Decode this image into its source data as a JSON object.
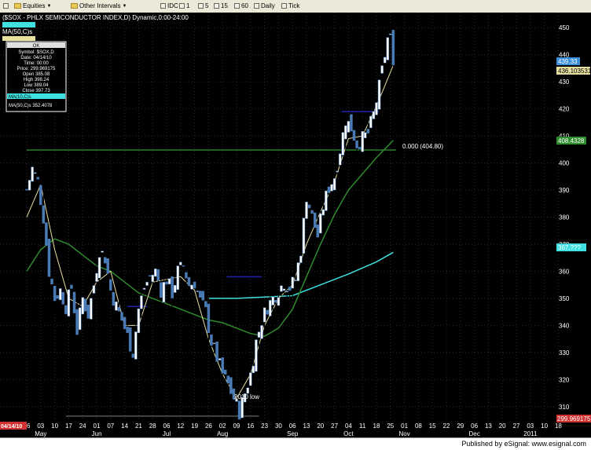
{
  "toolbar": {
    "items": [
      "Equities",
      "Other Intervals",
      "IDC",
      "1",
      "5",
      "15",
      "60",
      "Daily",
      "Tick"
    ]
  },
  "header": {
    "title": "($SOX - PHLX SEMICONDUCTOR INDEX,D) Dynamic,0:00-24:00",
    "ma_label": "MA(50,C)s"
  },
  "data_window": {
    "ok": "OK",
    "lines": [
      "Symbol: $SOX,D",
      "Date: 04/14/10",
      "Time: 00:00",
      "Price: 299.969175",
      "Open 385.08",
      "High 398.24",
      "Low 389.04",
      "Close 397.73"
    ],
    "ma_short": "MA(10,C)s",
    "ma_long": "MA(50,C)s 352.4078"
  },
  "footer": {
    "text": "Published by eSignal: www.esignal.com"
  },
  "colors": {
    "background": "#000000",
    "grid": "#2a2a2a",
    "candle": "#4a7bb5",
    "wick": "#000000",
    "ma_short": "#e8e0a0",
    "ma_long": "#2e8b2e",
    "ma_200": "#40e0e0",
    "support_line": "#2e7d2e",
    "resistance": "#2222aa",
    "low_line": "#555555",
    "price_box": "#3b8ed8",
    "ma_short_box": "#e8e0a0",
    "ma_long_box": "#2e8b2e",
    "ma_200_box": "#40e0e0",
    "price_current_box": "#d03030",
    "date_box": "#d03030"
  },
  "chart_data": {
    "type": "candlestick",
    "ylim": [
      305,
      455
    ],
    "y_ticks": [
      310,
      320,
      330,
      340,
      350,
      360,
      370,
      380,
      390,
      400,
      410,
      420,
      430,
      440,
      450
    ],
    "day_ticks": [
      "26",
      "03",
      "10",
      "17",
      "24",
      "01",
      "07",
      "14",
      "21",
      "28",
      "06",
      "12",
      "19",
      "26",
      "02",
      "09",
      "16",
      "23",
      "30",
      "06",
      "13",
      "20",
      "27",
      "04",
      "11",
      "18",
      "25",
      "01",
      "08",
      "15",
      "22",
      "29",
      "06",
      "13",
      "20",
      "27",
      "03",
      "10",
      "18"
    ],
    "month_ticks": [
      {
        "label": "May",
        "tick": 1
      },
      {
        "label": "Jun",
        "tick": 5
      },
      {
        "label": "Jul",
        "tick": 10
      },
      {
        "label": "Aug",
        "tick": 14
      },
      {
        "label": "Sep",
        "tick": 19
      },
      {
        "label": "Oct",
        "tick": 23
      },
      {
        "label": "Nov",
        "tick": 27
      },
      {
        "label": "Dec",
        "tick": 32
      },
      {
        "label": "2011",
        "tick": 36
      }
    ],
    "date_box_label": "04/14/10",
    "axis_values": {
      "last_price": "439.33",
      "ma_short": "436.103531",
      "ma_long": "408.4328",
      "ma_200": "367.???",
      "current_price": "299.969175"
    },
    "annotations": {
      "support_label": "0.000 (404.80)",
      "low_label": "2010 low"
    },
    "levels": {
      "support": 404.8,
      "low": 306.5
    },
    "close_series": [
      {
        "t": 0,
        "c": 390
      },
      {
        "t": 0.4,
        "c": 398
      },
      {
        "t": 0.8,
        "c": 393
      },
      {
        "t": 1.2,
        "c": 380
      },
      {
        "t": 1.6,
        "c": 360
      },
      {
        "t": 2.0,
        "c": 350
      },
      {
        "t": 2.4,
        "c": 353
      },
      {
        "t": 2.8,
        "c": 347
      },
      {
        "t": 3.2,
        "c": 354
      },
      {
        "t": 3.6,
        "c": 338
      },
      {
        "t": 4.0,
        "c": 350
      },
      {
        "t": 4.4,
        "c": 344
      },
      {
        "t": 4.8,
        "c": 355
      },
      {
        "t": 5.2,
        "c": 368
      },
      {
        "t": 5.6,
        "c": 365
      },
      {
        "t": 6.0,
        "c": 353
      },
      {
        "t": 6.4,
        "c": 347
      },
      {
        "t": 6.8,
        "c": 342
      },
      {
        "t": 7.2,
        "c": 336
      },
      {
        "t": 7.6,
        "c": 330
      },
      {
        "t": 8.0,
        "c": 346
      },
      {
        "t": 8.4,
        "c": 354
      },
      {
        "t": 8.8,
        "c": 358
      },
      {
        "t": 9.2,
        "c": 360
      },
      {
        "t": 9.6,
        "c": 353
      },
      {
        "t": 10.0,
        "c": 357
      },
      {
        "t": 10.4,
        "c": 352
      },
      {
        "t": 10.8,
        "c": 360
      },
      {
        "t": 11.2,
        "c": 362
      },
      {
        "t": 11.6,
        "c": 355
      },
      {
        "t": 12.0,
        "c": 356
      },
      {
        "t": 12.4,
        "c": 349
      },
      {
        "t": 12.8,
        "c": 345
      },
      {
        "t": 13.2,
        "c": 334
      },
      {
        "t": 13.6,
        "c": 328
      },
      {
        "t": 14.0,
        "c": 322
      },
      {
        "t": 14.4,
        "c": 318
      },
      {
        "t": 14.8,
        "c": 313
      },
      {
        "t": 15.2,
        "c": 308
      },
      {
        "t": 15.6,
        "c": 315
      },
      {
        "t": 16.0,
        "c": 322
      },
      {
        "t": 16.4,
        "c": 334
      },
      {
        "t": 16.8,
        "c": 342
      },
      {
        "t": 17.2,
        "c": 347
      },
      {
        "t": 17.6,
        "c": 350
      },
      {
        "t": 18.0,
        "c": 353
      },
      {
        "t": 18.4,
        "c": 356
      },
      {
        "t": 18.8,
        "c": 354
      },
      {
        "t": 19.2,
        "c": 357
      },
      {
        "t": 19.6,
        "c": 368
      },
      {
        "t": 20.0,
        "c": 388
      },
      {
        "t": 20.4,
        "c": 380
      },
      {
        "t": 20.8,
        "c": 373
      },
      {
        "t": 21.2,
        "c": 384
      },
      {
        "t": 21.6,
        "c": 391
      },
      {
        "t": 22.0,
        "c": 395
      },
      {
        "t": 22.4,
        "c": 405
      },
      {
        "t": 22.8,
        "c": 416
      },
      {
        "t": 23.2,
        "c": 413
      },
      {
        "t": 23.6,
        "c": 407
      },
      {
        "t": 24.0,
        "c": 409
      },
      {
        "t": 24.4,
        "c": 411
      },
      {
        "t": 24.8,
        "c": 418
      },
      {
        "t": 25.2,
        "c": 428
      },
      {
        "t": 25.6,
        "c": 440
      },
      {
        "t": 25.9,
        "c": 449
      },
      {
        "t": 26.2,
        "c": 439
      }
    ],
    "ma_short_series": [
      {
        "t": 0,
        "c": 380
      },
      {
        "t": 1,
        "c": 392
      },
      {
        "t": 2,
        "c": 368
      },
      {
        "t": 3,
        "c": 350
      },
      {
        "t": 4,
        "c": 347
      },
      {
        "t": 5,
        "c": 356
      },
      {
        "t": 6,
        "c": 360
      },
      {
        "t": 7,
        "c": 340
      },
      {
        "t": 8,
        "c": 340
      },
      {
        "t": 9,
        "c": 356
      },
      {
        "t": 10,
        "c": 357
      },
      {
        "t": 11,
        "c": 358
      },
      {
        "t": 12,
        "c": 353
      },
      {
        "t": 13,
        "c": 335
      },
      {
        "t": 14,
        "c": 322
      },
      {
        "t": 15,
        "c": 313
      },
      {
        "t": 16,
        "c": 322
      },
      {
        "t": 17,
        "c": 340
      },
      {
        "t": 18,
        "c": 350
      },
      {
        "t": 19,
        "c": 355
      },
      {
        "t": 20,
        "c": 370
      },
      {
        "t": 21,
        "c": 382
      },
      {
        "t": 22,
        "c": 393
      },
      {
        "t": 23,
        "c": 409
      },
      {
        "t": 24,
        "c": 410
      },
      {
        "t": 25,
        "c": 421
      },
      {
        "t": 26.2,
        "c": 436.1
      }
    ],
    "ma_long_series": [
      {
        "t": 0,
        "c": 360
      },
      {
        "t": 1,
        "c": 368
      },
      {
        "t": 2,
        "c": 372
      },
      {
        "t": 3,
        "c": 370
      },
      {
        "t": 4,
        "c": 366
      },
      {
        "t": 5,
        "c": 362
      },
      {
        "t": 6,
        "c": 360
      },
      {
        "t": 7,
        "c": 356
      },
      {
        "t": 8,
        "c": 352
      },
      {
        "t": 9,
        "c": 350
      },
      {
        "t": 10,
        "c": 348
      },
      {
        "t": 11,
        "c": 346
      },
      {
        "t": 12,
        "c": 344
      },
      {
        "t": 13,
        "c": 342
      },
      {
        "t": 14,
        "c": 341
      },
      {
        "t": 15,
        "c": 339
      },
      {
        "t": 16,
        "c": 337
      },
      {
        "t": 17,
        "c": 336
      },
      {
        "t": 18,
        "c": 339
      },
      {
        "t": 19,
        "c": 346
      },
      {
        "t": 20,
        "c": 358
      },
      {
        "t": 21,
        "c": 370
      },
      {
        "t": 22,
        "c": 381
      },
      {
        "t": 23,
        "c": 390
      },
      {
        "t": 24,
        "c": 396
      },
      {
        "t": 25,
        "c": 402
      },
      {
        "t": 26.2,
        "c": 408.4
      }
    ],
    "ma_200_series": [
      {
        "t": 13.0,
        "c": 350
      },
      {
        "t": 15.0,
        "c": 350
      },
      {
        "t": 17.0,
        "c": 350.5
      },
      {
        "t": 19.0,
        "c": 351
      },
      {
        "t": 21.0,
        "c": 355
      },
      {
        "t": 23.0,
        "c": 359
      },
      {
        "t": 25.0,
        "c": 363.5
      },
      {
        "t": 26.2,
        "c": 367
      }
    ],
    "resistance_segments": [
      {
        "t0": 7.2,
        "t1": 8.6,
        "v": 347
      },
      {
        "t0": 14.3,
        "t1": 16.8,
        "v": 358
      },
      {
        "t0": 22.5,
        "t1": 25.2,
        "v": 419
      }
    ]
  }
}
